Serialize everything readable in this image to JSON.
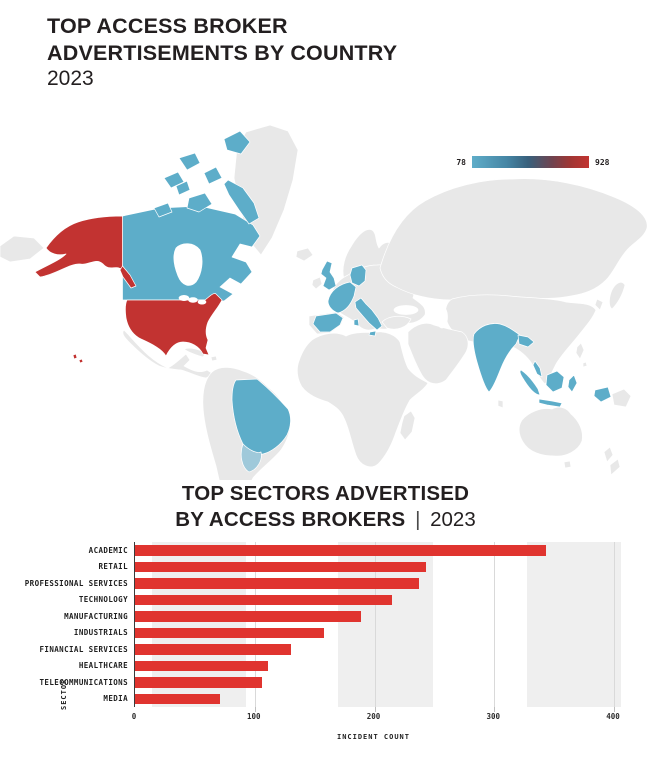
{
  "map_section": {
    "title_line1": "TOP ACCESS BROKER",
    "title_line2": "ADVERTISEMENTS BY COUNTRY",
    "year": "2023",
    "legend": {
      "min_label": "78",
      "max_label": "928",
      "gradient_stops": [
        "#5fadc9 0%",
        "#4585a4 30%",
        "#38607c 48%",
        "#6e4450 68%",
        "#a03634 84%",
        "#c23431 100%"
      ]
    },
    "colors": {
      "land": "#e8e8e8",
      "border": "#ffffff",
      "low": "#5dadc9",
      "low_soft": "#9fc9da",
      "high": "#c23331"
    },
    "countries": {
      "united-states": "high",
      "canada": "low",
      "brazil": "low",
      "south-brazil": "low_soft",
      "united-kingdom": "low",
      "france": "low",
      "spain": "low",
      "germany": "low",
      "italy": "low",
      "india": "low",
      "indonesia": "low",
      "malaysia": "low"
    }
  },
  "chart_section": {
    "title_line1": "TOP SECTORS ADVERTISED",
    "title_bold": "BY ACCESS BROKERS",
    "title_separator": "|",
    "title_year": "2023",
    "bar_color": "#e0342f"
  },
  "chart_data": [
    {
      "type": "choropleth",
      "title": "TOP ACCESS BROKER ADVERTISEMENTS BY COUNTRY 2023",
      "colorbar": {
        "min": 78,
        "max": 928
      },
      "high_value_countries": [
        "United States"
      ],
      "low_to_mid_value_countries": [
        "Canada",
        "Brazil",
        "United Kingdom",
        "France",
        "Spain",
        "Germany",
        "Italy",
        "India",
        "Indonesia",
        "Malaysia"
      ]
    },
    {
      "type": "bar",
      "orientation": "horizontal",
      "title": "TOP SECTORS ADVERTISED BY ACCESS BROKERS | 2023",
      "categories": [
        "ACADEMIC",
        "RETAIL",
        "PROFESSIONAL SERVICES",
        "TECHNOLOGY",
        "MANUFACTURING",
        "INDUSTRIALS",
        "FINANCIAL SERVICES",
        "HEALTHCARE",
        "TELECOMMUNICATIONS",
        "MEDIA"
      ],
      "values": [
        343,
        243,
        237,
        215,
        189,
        158,
        130,
        111,
        106,
        71
      ],
      "xlabel": "INCIDENT COUNT",
      "ylabel": "SECTOR",
      "xlim": [
        0,
        400
      ],
      "xticks": [
        0,
        100,
        200,
        300,
        400
      ],
      "grid": true,
      "background_bands_pct": [
        [
          3.6,
          23.1
        ],
        [
          42.4,
          62.2
        ],
        [
          81.8,
          101.5
        ]
      ]
    }
  ]
}
